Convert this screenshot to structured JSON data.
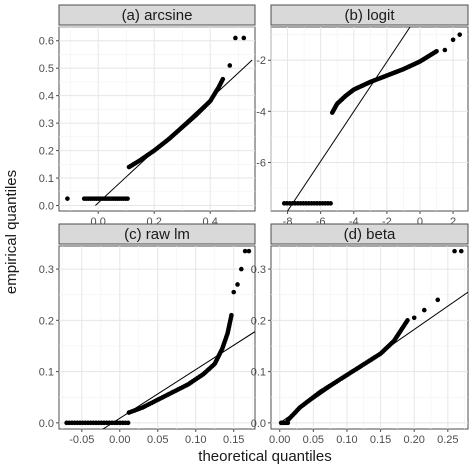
{
  "figure": {
    "xlabel": "theoretical quantiles",
    "ylabel": "empirical quantiles"
  },
  "chart_data": [
    {
      "type": "scatter",
      "title": "(a) arcsine",
      "xlim": [
        -0.14,
        0.56
      ],
      "ylim": [
        -0.02,
        0.65
      ],
      "xticks": [
        {
          "v": 0.0,
          "label": "0.0"
        },
        {
          "v": 0.2,
          "label": "0.2"
        },
        {
          "v": 0.4,
          "label": "0.4"
        }
      ],
      "yticks": [
        {
          "v": 0.0,
          "label": "0.0"
        },
        {
          "v": 0.1,
          "label": "0.1"
        },
        {
          "v": 0.2,
          "label": "0.2"
        },
        {
          "v": 0.3,
          "label": "0.3"
        },
        {
          "v": 0.4,
          "label": "0.4"
        },
        {
          "v": 0.5,
          "label": "0.5"
        },
        {
          "v": 0.6,
          "label": "0.6"
        }
      ],
      "reference_line": {
        "x": [
          -0.01,
          0.55
        ],
        "y": [
          0.0,
          0.53
        ]
      },
      "points": {
        "flat": {
          "x_from": -0.05,
          "x_to": 0.105,
          "y": 0.025,
          "n": 22
        },
        "outliers": [
          [
            -0.11,
            0.025
          ],
          [
            0.47,
            0.51
          ],
          [
            0.49,
            0.61
          ],
          [
            0.52,
            0.61
          ]
        ],
        "curve": [
          [
            0.11,
            0.14
          ],
          [
            0.15,
            0.165
          ],
          [
            0.2,
            0.2
          ],
          [
            0.25,
            0.24
          ],
          [
            0.3,
            0.285
          ],
          [
            0.35,
            0.33
          ],
          [
            0.4,
            0.38
          ],
          [
            0.43,
            0.43
          ],
          [
            0.445,
            0.46
          ]
        ],
        "curve_n": 70
      }
    },
    {
      "type": "scatter",
      "title": "(b) logit",
      "xlim": [
        -9.0,
        2.9
      ],
      "ylim": [
        -7.9,
        -0.7
      ],
      "xticks": [
        {
          "v": -8,
          "label": "-8"
        },
        {
          "v": -6,
          "label": "-6"
        },
        {
          "v": -4,
          "label": "-4"
        },
        {
          "v": -2,
          "label": "-2"
        },
        {
          "v": 0,
          "label": "0"
        },
        {
          "v": 2,
          "label": "2"
        }
      ],
      "yticks": [
        {
          "v": -6,
          "label": "-6"
        },
        {
          "v": -4,
          "label": "-4"
        },
        {
          "v": -2,
          "label": "-2"
        }
      ],
      "reference_line": {
        "x": [
          -8.0,
          -0.6
        ],
        "y": [
          -7.9,
          -0.7
        ]
      },
      "points": {
        "flat": {
          "x_from": -8.2,
          "x_to": -5.4,
          "y": -7.6,
          "n": 18
        },
        "outliers": [
          [
            1.5,
            -1.6
          ],
          [
            2.0,
            -1.2
          ],
          [
            2.4,
            -1.0
          ]
        ],
        "curve": [
          [
            -5.3,
            -4.05
          ],
          [
            -5.0,
            -3.7
          ],
          [
            -4.5,
            -3.4
          ],
          [
            -4.0,
            -3.15
          ],
          [
            -3.0,
            -2.85
          ],
          [
            -2.0,
            -2.6
          ],
          [
            -1.0,
            -2.35
          ],
          [
            0.0,
            -2.05
          ],
          [
            0.5,
            -1.85
          ],
          [
            1.0,
            -1.65
          ]
        ],
        "curve_n": 80
      }
    },
    {
      "type": "scatter",
      "title": "(c) raw lm",
      "xlim": [
        -0.08,
        0.178
      ],
      "ylim": [
        -0.012,
        0.345
      ],
      "xticks": [
        {
          "v": -0.05,
          "label": "-0.05"
        },
        {
          "v": 0.0,
          "label": "0.00"
        },
        {
          "v": 0.05,
          "label": "0.05"
        },
        {
          "v": 0.1,
          "label": "0.10"
        },
        {
          "v": 0.15,
          "label": "0.15"
        }
      ],
      "yticks": [
        {
          "v": 0.0,
          "label": "0.0"
        },
        {
          "v": 0.1,
          "label": "0.1"
        },
        {
          "v": 0.2,
          "label": "0.2"
        },
        {
          "v": 0.3,
          "label": "0.3"
        }
      ],
      "reference_line": {
        "x": [
          -0.022,
          0.178
        ],
        "y": [
          -0.012,
          0.178
        ]
      },
      "points": {
        "flat": {
          "x_from": -0.07,
          "x_to": 0.011,
          "y": 0.0,
          "n": 24
        },
        "outliers": [
          [
            0.15,
            0.255
          ],
          [
            0.155,
            0.27
          ],
          [
            0.16,
            0.3
          ],
          [
            0.165,
            0.335
          ],
          [
            0.17,
            0.335
          ]
        ],
        "curve": [
          [
            0.012,
            0.02
          ],
          [
            0.03,
            0.03
          ],
          [
            0.05,
            0.045
          ],
          [
            0.07,
            0.06
          ],
          [
            0.09,
            0.075
          ],
          [
            0.11,
            0.095
          ],
          [
            0.125,
            0.115
          ],
          [
            0.135,
            0.145
          ],
          [
            0.142,
            0.175
          ],
          [
            0.147,
            0.21
          ]
        ],
        "curve_n": 75
      }
    },
    {
      "type": "scatter",
      "title": "(d) beta",
      "xlim": [
        -0.013,
        0.28
      ],
      "ylim": [
        -0.012,
        0.345
      ],
      "xticks": [
        {
          "v": 0.0,
          "label": "0.00"
        },
        {
          "v": 0.05,
          "label": "0.05"
        },
        {
          "v": 0.1,
          "label": "0.10"
        },
        {
          "v": 0.15,
          "label": "0.15"
        },
        {
          "v": 0.2,
          "label": "0.20"
        },
        {
          "v": 0.25,
          "label": "0.25"
        }
      ],
      "yticks": [
        {
          "v": 0.0,
          "label": "0.0"
        },
        {
          "v": 0.1,
          "label": "0.1"
        },
        {
          "v": 0.2,
          "label": "0.2"
        },
        {
          "v": 0.3,
          "label": "0.3"
        }
      ],
      "reference_line": {
        "x": [
          0.0,
          0.28
        ],
        "y": [
          0.0,
          0.255
        ]
      },
      "points": {
        "flat": {
          "x_from": 0.002,
          "x_to": 0.012,
          "y": 0.0,
          "n": 5
        },
        "outliers": [
          [
            0.2,
            0.205
          ],
          [
            0.215,
            0.22
          ],
          [
            0.235,
            0.24
          ],
          [
            0.26,
            0.335
          ],
          [
            0.27,
            0.335
          ]
        ],
        "curve": [
          [
            0.012,
            0.005
          ],
          [
            0.03,
            0.03
          ],
          [
            0.06,
            0.06
          ],
          [
            0.09,
            0.085
          ],
          [
            0.12,
            0.11
          ],
          [
            0.15,
            0.135
          ],
          [
            0.17,
            0.16
          ],
          [
            0.18,
            0.18
          ],
          [
            0.19,
            0.2
          ]
        ],
        "curve_n": 80
      }
    }
  ]
}
